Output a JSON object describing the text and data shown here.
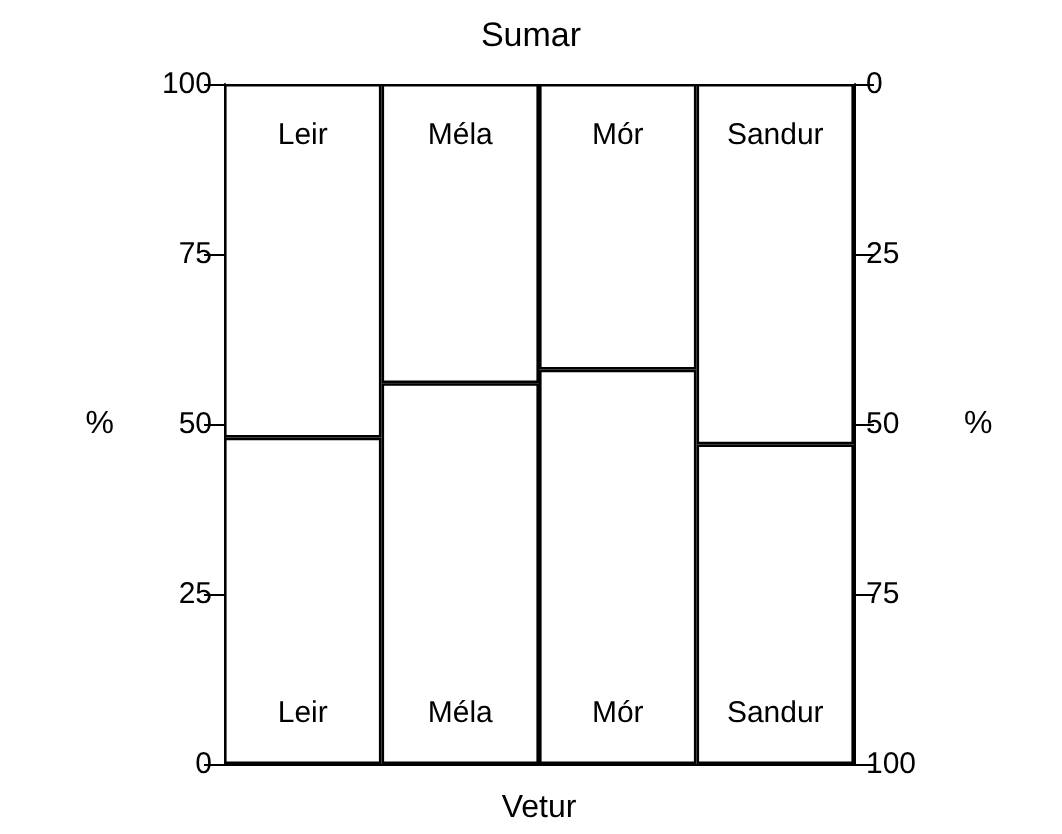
{
  "chart_data": {
    "type": "bar",
    "title": "Sumar",
    "xlabel": "Vetur",
    "ylabel": "%",
    "y2label": "%",
    "categories": [
      "Leir",
      "Méla",
      "Mór",
      "Sandur"
    ],
    "stacked": true,
    "series": [
      {
        "color": "#ffffff",
        "values": [
          48,
          56,
          58,
          47
        ]
      },
      {
        "color": "#ffffff",
        "values": [
          52,
          44,
          42,
          53
        ]
      }
    ],
    "ylim": [
      0,
      100
    ],
    "yticks": [
      0,
      25,
      50,
      75,
      100
    ],
    "y2lim": [
      100,
      0
    ],
    "y2ticks": [
      0,
      25,
      50,
      75,
      100
    ],
    "grid": false
  }
}
